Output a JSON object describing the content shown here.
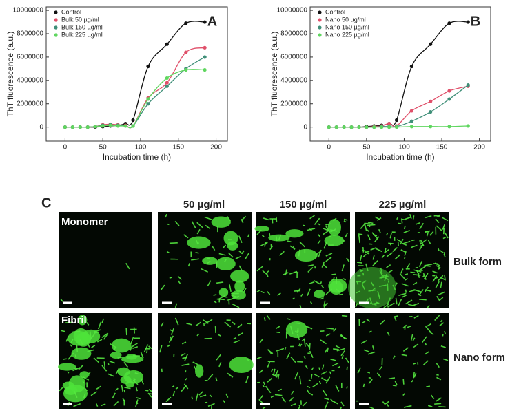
{
  "chart_data": [
    {
      "type": "scatter",
      "label": "A",
      "x_label": "Incubation time (h)",
      "y_label": "ThT fluorescence (a.u.)",
      "xlim": [
        -25,
        215
      ],
      "xticks": [
        0,
        50,
        100,
        150,
        200
      ],
      "ylim": [
        -1200000,
        10300000
      ],
      "yticks": [
        0,
        2000000,
        4000000,
        6000000,
        8000000,
        10000000
      ],
      "legend": "upper left",
      "smooth_line": true,
      "x": [
        0,
        10,
        20,
        30,
        40,
        50,
        60,
        70,
        80,
        90,
        110,
        135,
        160,
        185
      ],
      "series": [
        {
          "name": "Control",
          "color": "#111111",
          "values": [
            0,
            0,
            0,
            0,
            0,
            50000,
            100000,
            150000,
            300000,
            600000,
            5200000,
            7100000,
            8900000,
            9000000
          ]
        },
        {
          "name": "Bulk 50 µg/ml",
          "color": "#e0506a",
          "values": [
            0,
            0,
            0,
            0,
            50000,
            200000,
            250000,
            200000,
            150000,
            100000,
            2500000,
            3800000,
            6400000,
            6800000
          ]
        },
        {
          "name": "Bulk 150 µg/ml",
          "color": "#3f8f78",
          "values": [
            0,
            0,
            0,
            0,
            50000,
            150000,
            200000,
            150000,
            100000,
            100000,
            2000000,
            3500000,
            5000000,
            6000000
          ]
        },
        {
          "name": "Bulk 225 µg/ml",
          "color": "#5fd65f",
          "values": [
            0,
            0,
            0,
            0,
            50000,
            100000,
            150000,
            100000,
            100000,
            100000,
            2400000,
            4200000,
            4900000,
            4900000
          ]
        }
      ]
    },
    {
      "type": "scatter",
      "label": "B",
      "x_label": "Incubation time (h)",
      "y_label": "ThT fluorescence (a.u.)",
      "xlim": [
        -25,
        215
      ],
      "xticks": [
        0,
        50,
        100,
        150,
        200
      ],
      "ylim": [
        -1200000,
        10300000
      ],
      "yticks": [
        0,
        2000000,
        4000000,
        6000000,
        8000000,
        10000000
      ],
      "legend": "upper left",
      "smooth_line": true,
      "x": [
        0,
        10,
        20,
        30,
        40,
        50,
        60,
        70,
        80,
        90,
        110,
        135,
        160,
        185
      ],
      "series": [
        {
          "name": "Control",
          "color": "#111111",
          "values": [
            0,
            0,
            0,
            0,
            0,
            50000,
            100000,
            150000,
            300000,
            600000,
            5200000,
            7100000,
            8900000,
            9000000
          ]
        },
        {
          "name": "Nano 50 µg/ml",
          "color": "#e0506a",
          "values": [
            0,
            0,
            0,
            0,
            0,
            0,
            50000,
            100000,
            300000,
            100000,
            1400000,
            2200000,
            3100000,
            3500000
          ]
        },
        {
          "name": "Nano 150 µg/ml",
          "color": "#3f8f78",
          "values": [
            0,
            0,
            0,
            0,
            0,
            0,
            0,
            50000,
            50000,
            50000,
            500000,
            1300000,
            2400000,
            3600000
          ]
        },
        {
          "name": "Nano 225 µg/ml",
          "color": "#5fd65f",
          "values": [
            0,
            0,
            0,
            0,
            0,
            0,
            0,
            0,
            0,
            0,
            50000,
            50000,
            50000,
            100000
          ]
        }
      ]
    }
  ],
  "panel_c": {
    "label": "C",
    "columns": [
      "50 µg/ml",
      "150 µg/ml",
      "225 µg/ml"
    ],
    "controls": [
      "Monomer",
      "Fibril"
    ],
    "rows": [
      "Bulk form",
      "Nano form"
    ]
  }
}
